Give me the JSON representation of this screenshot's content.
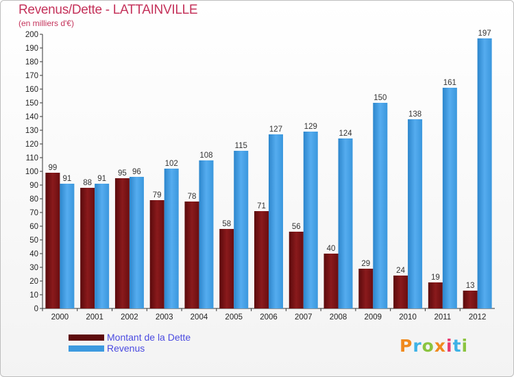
{
  "chart_data": {
    "type": "bar",
    "title": "Revenus/Dette - LATTAINVILLE",
    "subtitle": "(en milliers d'€)",
    "categories": [
      "2000",
      "2001",
      "2002",
      "2003",
      "2004",
      "2005",
      "2006",
      "2007",
      "2008",
      "2009",
      "2010",
      "2011",
      "2012"
    ],
    "series": [
      {
        "name": "Montant de la Dette",
        "color": "#7a0f12",
        "values": [
          99,
          88,
          95,
          79,
          78,
          58,
          71,
          56,
          40,
          29,
          24,
          19,
          13
        ]
      },
      {
        "name": "Revenus",
        "color": "#3d9ae0",
        "values": [
          91,
          91,
          96,
          102,
          108,
          115,
          127,
          129,
          124,
          150,
          138,
          161,
          197
        ]
      }
    ],
    "ylim": [
      0,
      200
    ],
    "ytick_step": 10,
    "grid": false,
    "legend_position": "bottom-left"
  },
  "logo": {
    "text": "Proxiti",
    "colors": [
      "#f08a1e",
      "#3db2e6",
      "#8bc43f",
      "#f08a1e",
      "#e83a6e",
      "#3db2e6",
      "#8bc43f"
    ]
  }
}
